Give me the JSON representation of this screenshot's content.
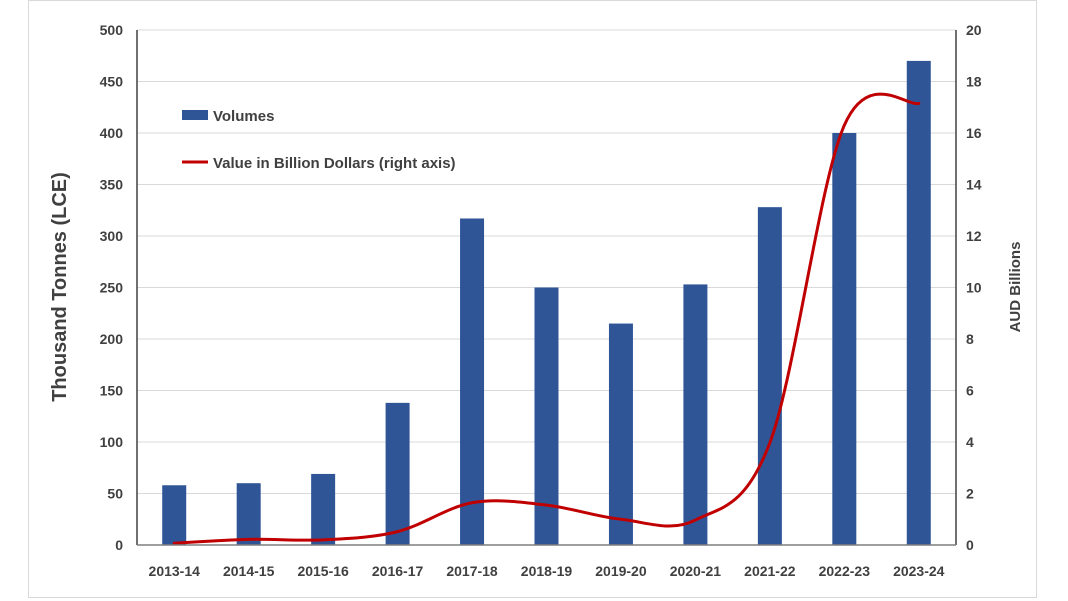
{
  "chart_data": {
    "type": "bar+line",
    "categories": [
      "2013-14",
      "2014-15",
      "2015-16",
      "2016-17",
      "2017-18",
      "2018-19",
      "2019-20",
      "2020-21",
      "2021-22",
      "2022-23",
      "2023-24"
    ],
    "series": [
      {
        "name": "Volumes",
        "type": "bar",
        "axis": "left",
        "color": "#2f5597",
        "values": [
          58,
          60,
          69,
          138,
          317,
          250,
          215,
          253,
          328,
          400,
          470
        ]
      },
      {
        "name": "Value in Billion Dollars (right axis)",
        "type": "line",
        "axis": "right",
        "color": "#c00000",
        "smooth": true,
        "values": [
          0.07,
          0.22,
          0.2,
          0.52,
          1.64,
          1.55,
          1.0,
          0.97,
          3.97,
          16.3,
          17.15
        ]
      }
    ],
    "ylabel": "Thousand Tonnes (LCE)",
    "y2label": "AUD Billions",
    "ylim": [
      0,
      500
    ],
    "y2lim": [
      0,
      20
    ],
    "yticks": [
      "0",
      "50",
      "100",
      "150",
      "200",
      "250",
      "300",
      "350",
      "400",
      "450",
      "500"
    ],
    "y2ticks": [
      "0",
      "2",
      "4",
      "6",
      "8",
      "10",
      "12",
      "14",
      "16",
      "18",
      "20"
    ],
    "grid": true,
    "legend_placement": "top-left"
  }
}
